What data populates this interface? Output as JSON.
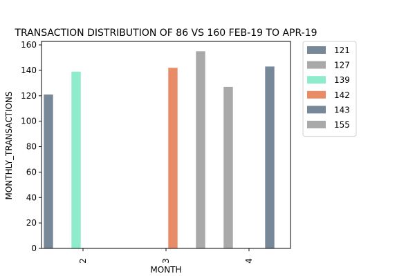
{
  "chart_data": {
    "type": "bar",
    "title": "TRANSACTION DISTRIBUTION OF 86 VS 160 FEB-19 TO APR-19",
    "xlabel": "MONTH",
    "ylabel": "MONTHLY_TRANSACTIONS",
    "categories": [
      "2",
      "3",
      "4"
    ],
    "ylim": [
      0,
      162.75
    ],
    "yticks": [
      0,
      20,
      40,
      60,
      80,
      100,
      120,
      140,
      160
    ],
    "grid": false,
    "legend_position": "outside-right",
    "series": [
      {
        "name": "121",
        "color": "#778899",
        "values": [
          121,
          null,
          null
        ]
      },
      {
        "name": "127",
        "color": "#a9a9a9",
        "values": [
          null,
          null,
          127
        ]
      },
      {
        "name": "139",
        "color": "#8eebcc",
        "values": [
          139,
          null,
          null
        ]
      },
      {
        "name": "142",
        "color": "#e98b66",
        "values": [
          null,
          142,
          null
        ]
      },
      {
        "name": "143",
        "color": "#778899",
        "values": [
          null,
          null,
          143
        ]
      },
      {
        "name": "155",
        "color": "#a9a9a9",
        "values": [
          null,
          155,
          null
        ]
      }
    ]
  }
}
